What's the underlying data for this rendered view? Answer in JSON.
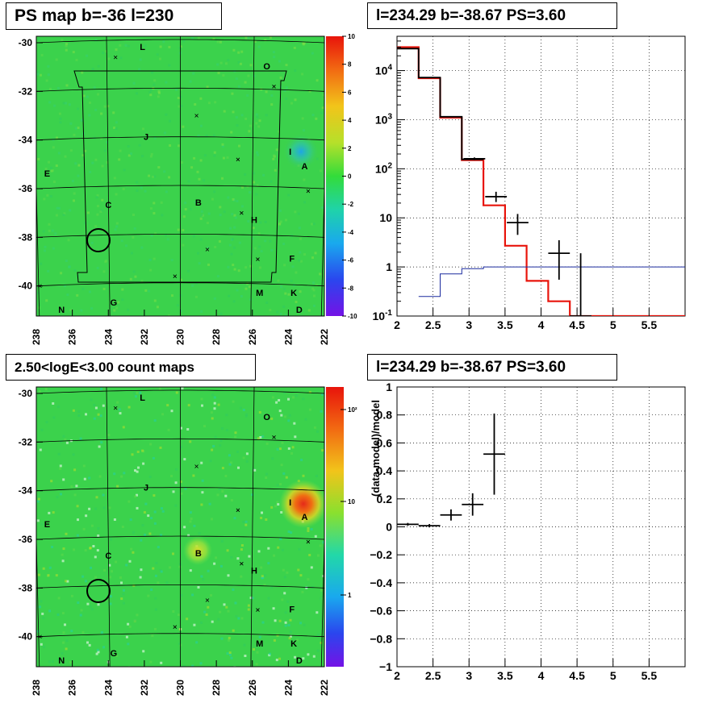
{
  "panels": {
    "ps_map": {
      "title": "PS map b=-36 l=230",
      "x_ticks": [
        "238",
        "236",
        "234",
        "232",
        "230",
        "228",
        "226",
        "224",
        "222"
      ],
      "y_ticks": [
        "-30",
        "-32",
        "-34",
        "-36",
        "-38",
        "-40"
      ],
      "colorbar_ticks": [
        "10",
        "8",
        "6",
        "4",
        "2",
        "0",
        "-2",
        "-4",
        "-6",
        "-8",
        "-10"
      ],
      "source_labels": [
        "L",
        "O",
        "J",
        "I",
        "A",
        "E",
        "C",
        "B",
        "H",
        "F",
        "G",
        "M",
        "K",
        "N",
        "D"
      ]
    },
    "count_map": {
      "title": "2.50<logE<3.00 count maps",
      "x_ticks": [
        "238",
        "236",
        "234",
        "232",
        "230",
        "228",
        "226",
        "224",
        "222"
      ],
      "y_ticks": [
        "-30",
        "-32",
        "-34",
        "-36",
        "-38",
        "-40"
      ],
      "colorbar_ticks": [
        "10²",
        "10",
        "1"
      ],
      "source_labels": [
        "L",
        "O",
        "J",
        "I",
        "A",
        "E",
        "C",
        "B",
        "H",
        "F",
        "G",
        "M",
        "K",
        "N",
        "D"
      ]
    },
    "spectrum": {
      "title": "l=234.29 b=-38.67 PS=3.60"
    },
    "residual": {
      "title": "l=234.29 b=-38.67 PS=3.60",
      "ylabel": "(data-model)/model"
    }
  },
  "chart_data": [
    {
      "type": "heatmap",
      "title": "PS map b=-36 l=230",
      "xlim": [
        238,
        222
      ],
      "ylim": [
        -41.5,
        -30
      ],
      "zlim": [
        -10,
        10
      ],
      "sources": [
        {
          "label": "L",
          "l": 232.1,
          "b": -30.3
        },
        {
          "label": "O",
          "l": 225.2,
          "b": -31.1
        },
        {
          "label": "J",
          "l": 231.9,
          "b": -34.0
        },
        {
          "label": "I",
          "l": 223.9,
          "b": -34.6
        },
        {
          "label": "A",
          "l": 223.1,
          "b": -35.2
        },
        {
          "label": "E",
          "l": 237.4,
          "b": -35.5
        },
        {
          "label": "C",
          "l": 234.0,
          "b": -36.8
        },
        {
          "label": "B",
          "l": 229.0,
          "b": -36.7
        },
        {
          "label": "H",
          "l": 225.9,
          "b": -37.4
        },
        {
          "label": "F",
          "l": 223.8,
          "b": -39.0
        },
        {
          "label": "G",
          "l": 233.7,
          "b": -40.8
        },
        {
          "label": "M",
          "l": 225.6,
          "b": -40.4
        },
        {
          "label": "K",
          "l": 223.7,
          "b": -40.4
        },
        {
          "label": "N",
          "l": 236.6,
          "b": -41.1
        },
        {
          "label": "D",
          "l": 223.4,
          "b": -41.1
        }
      ],
      "hotspot": {
        "l": 223.1,
        "b": -35.0,
        "value": -2
      }
    },
    {
      "type": "heatmap",
      "title": "2.50<logE<3.00 count maps",
      "xlim": [
        238,
        222
      ],
      "ylim": [
        -41.5,
        -30
      ],
      "zscale": "log",
      "hotspots": [
        {
          "l": 223.1,
          "b": -35.0,
          "value": 100
        },
        {
          "l": 229.0,
          "b": -36.7,
          "value": 20
        }
      ]
    },
    {
      "type": "line",
      "title": "l=234.29 b=-38.67 PS=3.60",
      "xlim": [
        2,
        6
      ],
      "ylim": [
        0.1,
        50000
      ],
      "yscale": "log",
      "x_ticks": [
        2,
        2.5,
        3,
        3.5,
        4,
        4.5,
        5,
        5.5
      ],
      "grid": true,
      "series": [
        {
          "color": "#e8140b",
          "steps": [
            [
              2,
              2.3,
              30000
            ],
            [
              2.3,
              2.6,
              7000
            ],
            [
              2.6,
              2.9,
              1100
            ],
            [
              2.9,
              3.2,
              150
            ],
            [
              3.2,
              3.5,
              18
            ],
            [
              3.5,
              3.8,
              2.7
            ],
            [
              3.8,
              4.1,
              0.52
            ],
            [
              4.1,
              4.4,
              0.2
            ],
            [
              4.4,
              6.0,
              0.1
            ]
          ]
        },
        {
          "color": "#000000",
          "steps": [
            [
              2,
              2.3,
              28000
            ],
            [
              2.3,
              2.6,
              7200
            ],
            [
              2.6,
              2.9,
              1150
            ],
            [
              2.9,
              3.2,
              155
            ]
          ]
        },
        {
          "color": "#1a2a9e",
          "steps": [
            [
              2.3,
              2.6,
              0.25
            ],
            [
              2.6,
              2.9,
              0.72
            ],
            [
              2.9,
              3.2,
              0.92
            ],
            [
              3.2,
              6.0,
              1.0
            ]
          ]
        }
      ],
      "points": [
        {
          "x": 3.075,
          "y": 160,
          "xerr": 0.15,
          "ylo": 150,
          "yhi": 170
        },
        {
          "x": 3.375,
          "y": 27,
          "xerr": 0.15,
          "ylo": 21,
          "yhi": 34
        },
        {
          "x": 3.675,
          "y": 8,
          "xerr": 0.15,
          "ylo": 4.5,
          "yhi": 12
        },
        {
          "x": 4.25,
          "y": 1.9,
          "xerr": 0.15,
          "ylo": 0.55,
          "yhi": 3.5
        },
        {
          "x": 4.55,
          "y": 0,
          "xerr": 0.15,
          "ylo": 0,
          "yhi": 1.9
        }
      ]
    },
    {
      "type": "scatter",
      "title": "l=234.29 b=-38.67 PS=3.60",
      "ylabel": "(data-model)/model",
      "xlim": [
        2,
        6
      ],
      "ylim": [
        -1,
        1
      ],
      "x_ticks": [
        2,
        2.5,
        3,
        3.5,
        4,
        4.5,
        5,
        5.5
      ],
      "y_ticks": [
        -1,
        -0.8,
        -0.6,
        -0.4,
        -0.2,
        0,
        0.2,
        0.4,
        0.6,
        0.8,
        1
      ],
      "grid": true,
      "points": [
        {
          "x": 2.15,
          "y": 0.018,
          "xerr": 0.15,
          "yerr": 0.01
        },
        {
          "x": 2.45,
          "y": 0.008,
          "xerr": 0.15,
          "yerr": 0.012
        },
        {
          "x": 2.75,
          "y": 0.085,
          "xerr": 0.15,
          "yerr": 0.04
        },
        {
          "x": 3.05,
          "y": 0.16,
          "xerr": 0.15,
          "yerr": 0.08
        },
        {
          "x": 3.35,
          "y": 0.52,
          "xerr": 0.15,
          "yerr": 0.29
        }
      ]
    }
  ]
}
